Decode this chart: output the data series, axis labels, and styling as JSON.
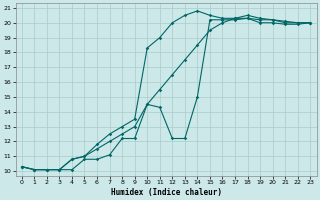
{
  "xlabel": "Humidex (Indice chaleur)",
  "bg_color": "#cce8e8",
  "grid_color": "#aacccc",
  "line_color": "#006666",
  "xlim_min": -0.5,
  "xlim_max": 23.5,
  "ylim_min": 9.7,
  "ylim_max": 21.3,
  "xticks": [
    0,
    1,
    2,
    3,
    4,
    5,
    6,
    7,
    8,
    9,
    10,
    11,
    12,
    13,
    14,
    15,
    16,
    17,
    18,
    19,
    20,
    21,
    22,
    23
  ],
  "yticks": [
    10,
    11,
    12,
    13,
    14,
    15,
    16,
    17,
    18,
    19,
    20,
    21
  ],
  "line1_x": [
    0,
    1,
    2,
    3,
    4,
    5,
    6,
    7,
    8,
    9,
    10,
    11,
    12,
    13,
    14,
    15,
    16,
    17,
    18,
    19,
    20,
    21,
    22,
    23
  ],
  "line1_y": [
    10.3,
    10.1,
    10.1,
    10.1,
    10.8,
    11.0,
    11.8,
    12.5,
    13.0,
    13.5,
    18.3,
    19.0,
    20.0,
    20.5,
    20.8,
    20.5,
    20.3,
    20.3,
    20.3,
    20.2,
    20.2,
    20.1,
    20.0,
    20.0
  ],
  "line2_x": [
    0,
    1,
    2,
    3,
    4,
    5,
    6,
    7,
    8,
    9,
    10,
    11,
    12,
    13,
    14,
    15,
    16,
    17,
    18,
    19,
    20,
    21,
    22,
    23
  ],
  "line2_y": [
    10.3,
    10.1,
    10.1,
    10.1,
    10.1,
    10.8,
    10.8,
    11.1,
    12.2,
    12.2,
    14.5,
    14.3,
    12.2,
    12.2,
    15.0,
    20.2,
    20.2,
    20.2,
    20.3,
    20.0,
    20.0,
    19.9,
    19.9,
    20.0
  ],
  "line3_x": [
    0,
    1,
    2,
    3,
    4,
    5,
    6,
    7,
    8,
    9,
    10,
    11,
    12,
    13,
    14,
    15,
    16,
    17,
    18,
    19,
    20,
    21,
    22,
    23
  ],
  "line3_y": [
    10.3,
    10.1,
    10.1,
    10.1,
    10.8,
    11.0,
    11.5,
    12.0,
    12.5,
    13.0,
    14.5,
    15.5,
    16.5,
    17.5,
    18.5,
    19.5,
    20.0,
    20.3,
    20.5,
    20.3,
    20.2,
    20.0,
    20.0,
    20.0
  ]
}
